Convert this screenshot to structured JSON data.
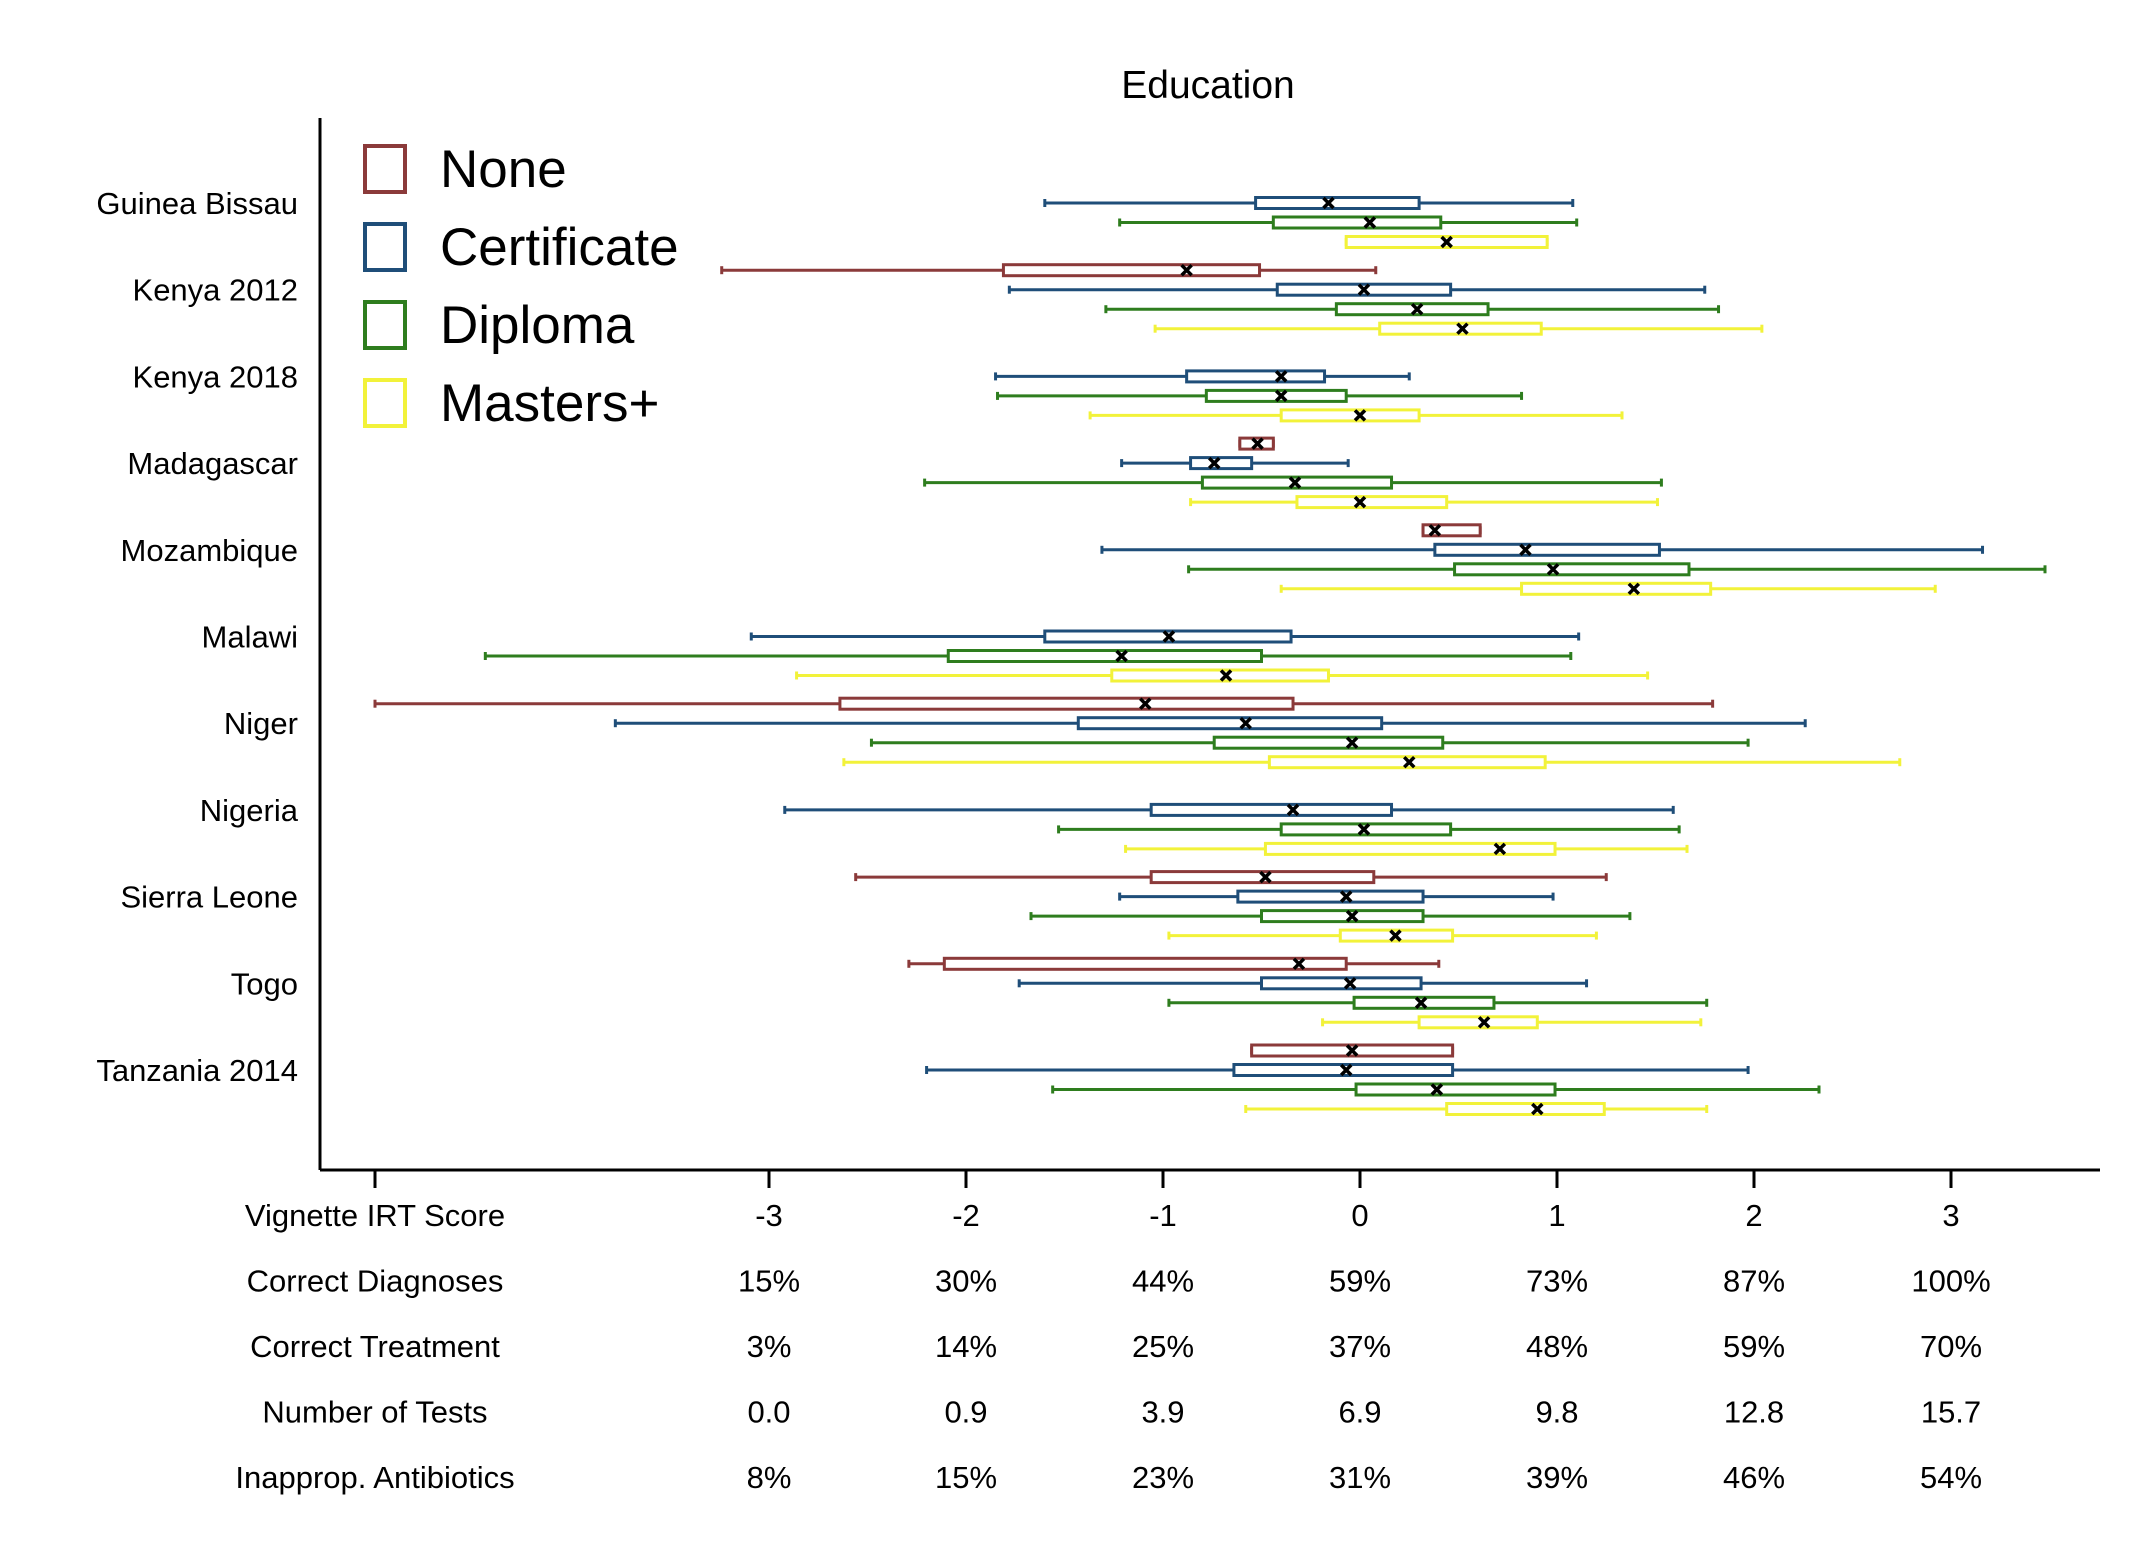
{
  "chart_data": {
    "type": "boxplot",
    "title": "Education",
    "xlim": [
      -4.3,
      3.8
    ],
    "categories": [
      "Guinea Bissau",
      "Kenya 2012",
      "Kenya 2018",
      "Madagascar",
      "Mozambique",
      "Malawi",
      "Niger",
      "Nigeria",
      "Sierra Leone",
      "Togo",
      "Tanzania 2014"
    ],
    "series": [
      {
        "name": "None",
        "color": "#8b3a3a"
      },
      {
        "name": "Certificate",
        "color": "#1f4e79"
      },
      {
        "name": "Diploma",
        "color": "#2e7d1e"
      },
      {
        "name": "Masters+",
        "color": "#f2f23a"
      }
    ],
    "groups": [
      {
        "country": "Guinea Bissau",
        "boxes": [
          {
            "series": "Certificate",
            "lo": -1.6,
            "q1": -0.53,
            "med": -0.16,
            "q3": 0.3,
            "hi": 1.08
          },
          {
            "series": "Diploma",
            "lo": -1.22,
            "q1": -0.44,
            "med": 0.05,
            "q3": 0.41,
            "hi": 1.1
          },
          {
            "series": "Masters+",
            "lo": -0.07,
            "q1": -0.07,
            "med": 0.44,
            "q3": 0.95,
            "hi": 0.95
          }
        ]
      },
      {
        "country": "Kenya 2012",
        "boxes": [
          {
            "series": "None",
            "lo": -3.24,
            "q1": -1.81,
            "med": -0.88,
            "q3": -0.51,
            "hi": 0.08
          },
          {
            "series": "Certificate",
            "lo": -1.78,
            "q1": -0.42,
            "med": 0.02,
            "q3": 0.46,
            "hi": 1.75
          },
          {
            "series": "Diploma",
            "lo": -1.29,
            "q1": -0.12,
            "med": 0.29,
            "q3": 0.65,
            "hi": 1.82
          },
          {
            "series": "Masters+",
            "lo": -1.04,
            "q1": 0.1,
            "med": 0.52,
            "q3": 0.92,
            "hi": 2.04
          }
        ]
      },
      {
        "country": "Kenya 2018",
        "boxes": [
          {
            "series": "Certificate",
            "lo": -1.85,
            "q1": -0.88,
            "med": -0.4,
            "q3": -0.18,
            "hi": 0.25
          },
          {
            "series": "Diploma",
            "lo": -1.84,
            "q1": -0.78,
            "med": -0.4,
            "q3": -0.07,
            "hi": 0.82
          },
          {
            "series": "Masters+",
            "lo": -1.37,
            "q1": -0.4,
            "med": 0.0,
            "q3": 0.3,
            "hi": 1.33
          }
        ]
      },
      {
        "country": "Madagascar",
        "boxes": [
          {
            "series": "None",
            "lo": -0.61,
            "q1": -0.61,
            "med": -0.52,
            "q3": -0.44,
            "hi": -0.44
          },
          {
            "series": "Certificate",
            "lo": -1.21,
            "q1": -0.86,
            "med": -0.74,
            "q3": -0.55,
            "hi": -0.06
          },
          {
            "series": "Diploma",
            "lo": -2.21,
            "q1": -0.8,
            "med": -0.33,
            "q3": 0.16,
            "hi": 1.53
          },
          {
            "series": "Masters+",
            "lo": -0.86,
            "q1": -0.32,
            "med": 0.0,
            "q3": 0.44,
            "hi": 1.51
          }
        ]
      },
      {
        "country": "Mozambique",
        "boxes": [
          {
            "series": "None",
            "lo": 0.32,
            "q1": 0.32,
            "med": 0.38,
            "q3": 0.61,
            "hi": 0.61
          },
          {
            "series": "Certificate",
            "lo": -1.31,
            "q1": 0.38,
            "med": 0.84,
            "q3": 1.52,
            "hi": 3.16
          },
          {
            "series": "Diploma",
            "lo": -0.87,
            "q1": 0.48,
            "med": 0.98,
            "q3": 1.67,
            "hi": 3.48
          },
          {
            "series": "Masters+",
            "lo": -0.4,
            "q1": 0.82,
            "med": 1.39,
            "q3": 1.78,
            "hi": 2.92
          }
        ]
      },
      {
        "country": "Malawi",
        "boxes": [
          {
            "series": "Certificate",
            "lo": -3.09,
            "q1": -1.6,
            "med": -0.97,
            "q3": -0.35,
            "hi": 1.11
          },
          {
            "series": "Diploma",
            "lo": -4.44,
            "q1": -2.09,
            "med": -1.21,
            "q3": -0.5,
            "hi": 1.07
          },
          {
            "series": "Masters+",
            "lo": -2.86,
            "q1": -1.26,
            "med": -0.68,
            "q3": -0.16,
            "hi": 1.46
          }
        ]
      },
      {
        "country": "Niger",
        "boxes": [
          {
            "series": "None",
            "lo": -5.0,
            "q1": -2.64,
            "med": -1.09,
            "q3": -0.34,
            "hi": 1.79
          },
          {
            "series": "Certificate",
            "lo": -3.78,
            "q1": -1.43,
            "med": -0.58,
            "q3": 0.11,
            "hi": 2.26
          },
          {
            "series": "Diploma",
            "lo": -2.48,
            "q1": -0.74,
            "med": -0.04,
            "q3": 0.42,
            "hi": 1.97
          },
          {
            "series": "Masters+",
            "lo": -2.62,
            "q1": -0.46,
            "med": 0.25,
            "q3": 0.94,
            "hi": 2.74
          }
        ]
      },
      {
        "country": "Nigeria",
        "boxes": [
          {
            "series": "Certificate",
            "lo": -2.92,
            "q1": -1.06,
            "med": -0.34,
            "q3": 0.16,
            "hi": 1.59
          },
          {
            "series": "Diploma",
            "lo": -1.53,
            "q1": -0.4,
            "med": 0.02,
            "q3": 0.46,
            "hi": 1.62
          },
          {
            "series": "Masters+",
            "lo": -1.19,
            "q1": -0.48,
            "med": 0.71,
            "q3": 0.99,
            "hi": 1.66
          }
        ]
      },
      {
        "country": "Sierra Leone",
        "boxes": [
          {
            "series": "None",
            "lo": -2.56,
            "q1": -1.06,
            "med": -0.48,
            "q3": 0.07,
            "hi": 1.25
          },
          {
            "series": "Certificate",
            "lo": -1.22,
            "q1": -0.62,
            "med": -0.07,
            "q3": 0.32,
            "hi": 0.98
          },
          {
            "series": "Diploma",
            "lo": -1.67,
            "q1": -0.5,
            "med": -0.04,
            "q3": 0.32,
            "hi": 1.37
          },
          {
            "series": "Masters+",
            "lo": -0.97,
            "q1": -0.1,
            "med": 0.18,
            "q3": 0.47,
            "hi": 1.2
          }
        ]
      },
      {
        "country": "Togo",
        "boxes": [
          {
            "series": "None",
            "lo": -2.29,
            "q1": -2.11,
            "med": -0.31,
            "q3": -0.07,
            "hi": 0.4
          },
          {
            "series": "Certificate",
            "lo": -1.73,
            "q1": -0.5,
            "med": -0.05,
            "q3": 0.31,
            "hi": 1.15
          },
          {
            "series": "Diploma",
            "lo": -0.97,
            "q1": -0.03,
            "med": 0.31,
            "q3": 0.68,
            "hi": 1.76
          },
          {
            "series": "Masters+",
            "lo": -0.19,
            "q1": 0.3,
            "med": 0.63,
            "q3": 0.9,
            "hi": 1.73
          }
        ]
      },
      {
        "country": "Tanzania 2014",
        "boxes": [
          {
            "series": "None",
            "lo": -0.55,
            "q1": -0.55,
            "med": -0.04,
            "q3": 0.47,
            "hi": 0.47
          },
          {
            "series": "Certificate",
            "lo": -2.2,
            "q1": -0.64,
            "med": -0.07,
            "q3": 0.47,
            "hi": 1.97
          },
          {
            "series": "Diploma",
            "lo": -1.56,
            "q1": -0.02,
            "med": 0.39,
            "q3": 0.99,
            "hi": 2.33
          },
          {
            "series": "Masters+",
            "lo": -0.58,
            "q1": 0.44,
            "med": 0.9,
            "q3": 1.24,
            "hi": 1.76
          }
        ]
      }
    ],
    "x_ticks": [
      -3,
      -2,
      -1,
      0,
      1,
      2,
      3
    ],
    "x_tick_labels": [
      "-3",
      "-2",
      "-1",
      "0",
      "1",
      "2",
      "3"
    ],
    "legend": {
      "position": "top-left"
    },
    "grid": false,
    "table": {
      "rows": [
        {
          "label": "Vignette IRT Score",
          "values": [
            "-3",
            "-2",
            "-1",
            "0",
            "1",
            "2",
            "3"
          ]
        },
        {
          "label": "Correct Diagnoses",
          "values": [
            "15%",
            "30%",
            "44%",
            "59%",
            "73%",
            "87%",
            "100%"
          ]
        },
        {
          "label": "Correct Treatment",
          "values": [
            "3%",
            "14%",
            "25%",
            "37%",
            "48%",
            "59%",
            "70%"
          ]
        },
        {
          "label": "Number of Tests",
          "values": [
            "0.0",
            "0.9",
            "3.9",
            "6.9",
            "9.8",
            "12.8",
            "15.7"
          ]
        },
        {
          "label": "Inapprop. Antibiotics",
          "values": [
            "8%",
            "15%",
            "23%",
            "31%",
            "39%",
            "46%",
            "54%"
          ]
        }
      ]
    }
  }
}
